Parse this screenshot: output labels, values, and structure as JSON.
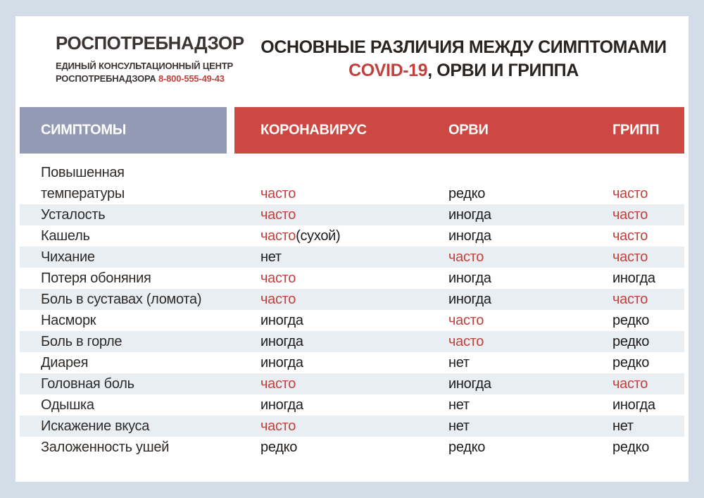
{
  "colors": {
    "page_bg": "#d2dde8",
    "card_bg": "#ffffff",
    "band_blue": "#939ab4",
    "band_red": "#cd4843",
    "accent_red": "#c0413d",
    "text_dark": "#2e2a27",
    "stripe": "#e9eef3",
    "header_text": "#ffffff"
  },
  "brand": {
    "logo": "РОСПОТРЕБНАДЗОР",
    "sub_line1": "ЕДИНЫЙ КОНСУЛЬТАЦИОННЫЙ ЦЕНТР",
    "sub_line2": "РОСПОТРЕБНАДЗОРА",
    "phone": "8-800-555-49-43"
  },
  "title": {
    "line1": "ОСНОВНЫЕ РАЗЛИЧИЯ МЕЖДУ СИМПТОМАМИ",
    "line2_red": "COVID-19",
    "line2_rest": ", ОРВИ И ГРИППА"
  },
  "table": {
    "headers": [
      {
        "label": "СИМПТОМЫ"
      },
      {
        "label": "КОРОНАВИРУС"
      },
      {
        "label": "ОРВИ"
      },
      {
        "label": "ГРИПП"
      }
    ],
    "rows": [
      {
        "symptom": "Повышенная температуры",
        "lines": [
          "Повышенная",
          "температуры"
        ],
        "stripe": false,
        "covid": {
          "text": "часто",
          "red": true
        },
        "orvi": {
          "text": "редко",
          "red": false
        },
        "flu": {
          "text": "часто",
          "red": true
        }
      },
      {
        "symptom": "Усталость",
        "stripe": true,
        "covid": {
          "text": "часто",
          "red": true
        },
        "orvi": {
          "text": "иногда",
          "red": false
        },
        "flu": {
          "text": "часто",
          "red": true
        }
      },
      {
        "symptom": "Кашель",
        "stripe": false,
        "covid": {
          "text": "часто",
          "red": true,
          "suffix": "(сухой)"
        },
        "orvi": {
          "text": "иногда",
          "red": false
        },
        "flu": {
          "text": "часто",
          "red": true
        }
      },
      {
        "symptom": "Чихание",
        "stripe": true,
        "covid": {
          "text": "нет",
          "red": false
        },
        "orvi": {
          "text": "часто",
          "red": true
        },
        "flu": {
          "text": "часто",
          "red": true
        }
      },
      {
        "symptom": "Потеря обоняния",
        "stripe": false,
        "covid": {
          "text": "часто",
          "red": true
        },
        "orvi": {
          "text": "иногда",
          "red": false
        },
        "flu": {
          "text": "иногда",
          "red": false
        }
      },
      {
        "symptom": "Боль в суставах (ломота)",
        "stripe": true,
        "covid": {
          "text": "часто",
          "red": true
        },
        "orvi": {
          "text": "иногда",
          "red": false
        },
        "flu": {
          "text": "часто",
          "red": true
        }
      },
      {
        "symptom": "Насморк",
        "stripe": false,
        "covid": {
          "text": "иногда",
          "red": false
        },
        "orvi": {
          "text": "часто",
          "red": true
        },
        "flu": {
          "text": "редко",
          "red": false
        }
      },
      {
        "symptom": "Боль в горле",
        "stripe": true,
        "covid": {
          "text": "иногда",
          "red": false
        },
        "orvi": {
          "text": "часто",
          "red": true
        },
        "flu": {
          "text": "редко",
          "red": false
        }
      },
      {
        "symptom": "Диарея",
        "stripe": false,
        "covid": {
          "text": "иногда",
          "red": false
        },
        "orvi": {
          "text": "нет",
          "red": false
        },
        "flu": {
          "text": "редко",
          "red": false
        }
      },
      {
        "symptom": "Головная боль",
        "stripe": true,
        "covid": {
          "text": "часто",
          "red": true
        },
        "orvi": {
          "text": "иногда",
          "red": false
        },
        "flu": {
          "text": "часто",
          "red": true
        }
      },
      {
        "symptom": "Одышка",
        "stripe": false,
        "covid": {
          "text": "иногда",
          "red": false
        },
        "orvi": {
          "text": "нет",
          "red": false
        },
        "flu": {
          "text": "иногда",
          "red": false
        }
      },
      {
        "symptom": "Искажение вкуса",
        "stripe": true,
        "covid": {
          "text": "часто",
          "red": true
        },
        "orvi": {
          "text": "нет",
          "red": false
        },
        "flu": {
          "text": "нет",
          "red": false
        }
      },
      {
        "symptom": "Заложенность ушей",
        "stripe": false,
        "covid": {
          "text": "редко",
          "red": false
        },
        "orvi": {
          "text": "редко",
          "red": false
        },
        "flu": {
          "text": "редко",
          "red": false
        }
      }
    ]
  }
}
